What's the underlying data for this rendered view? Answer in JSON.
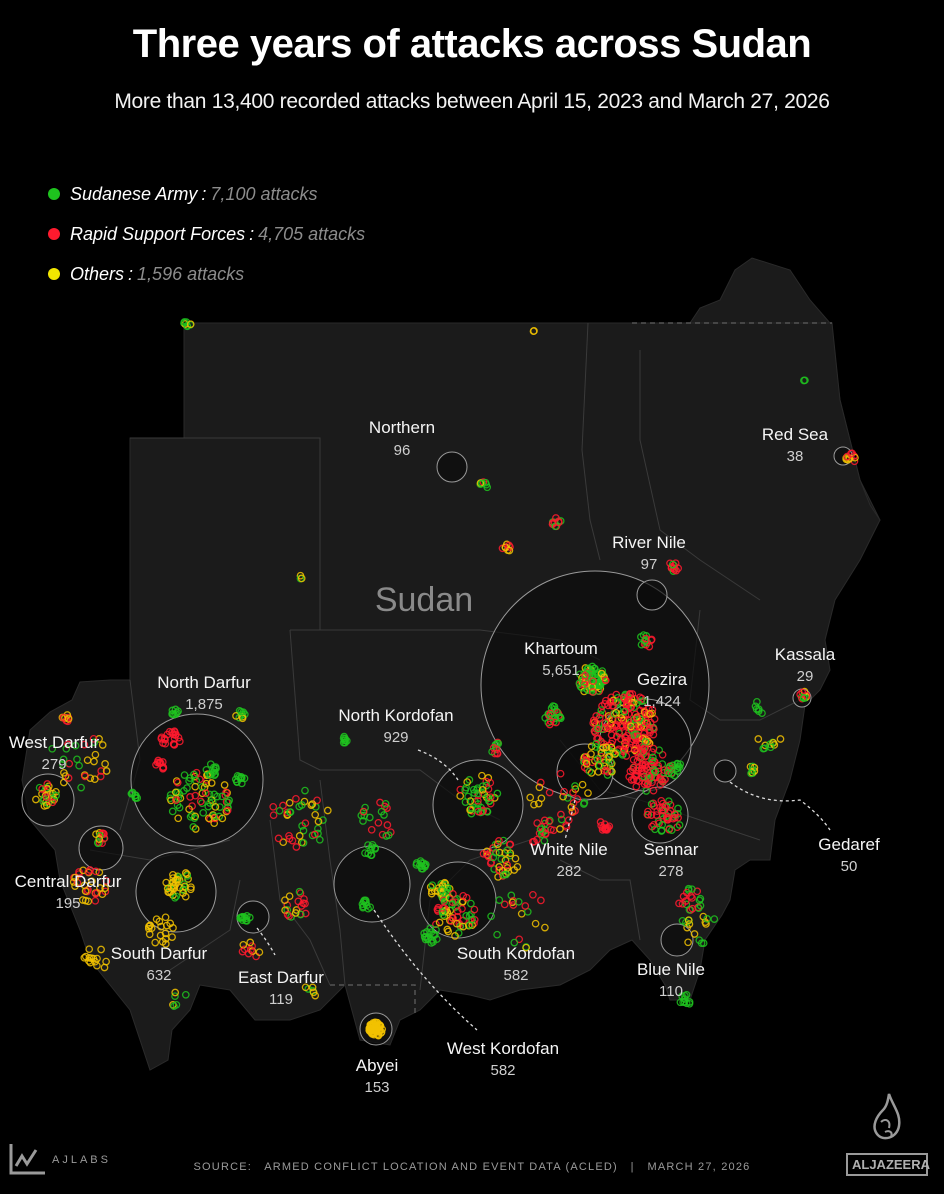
{
  "header": {
    "title": "Three years of attacks across Sudan",
    "subtitle": "More than 13,400 recorded attacks between April 15, 2023 and March 27, 2026"
  },
  "legend": [
    {
      "label": "Sudanese Army",
      "value": "7,100 attacks",
      "color": "#1ec31e"
    },
    {
      "label": "Rapid Support Forces",
      "value": "4,705 attacks",
      "color": "#ff1a2e"
    },
    {
      "label": "Others",
      "value": "1,596 attacks",
      "color": "#f2e600"
    }
  ],
  "map": {
    "country_label": "Sudan",
    "colors": {
      "land": "#1b1b1b",
      "border": "#3a3a3a",
      "army": "#1ec31e",
      "rsf": "#ff1a2e",
      "others": "#f2c200",
      "circle": "#9a9a9a"
    },
    "regions": [
      {
        "name": "Northern",
        "count": "96"
      },
      {
        "name": "Red Sea",
        "count": "38"
      },
      {
        "name": "River Nile",
        "count": "97"
      },
      {
        "name": "Khartoum",
        "count": "5,651"
      },
      {
        "name": "Gezira",
        "count": "1,424"
      },
      {
        "name": "Kassala",
        "count": "29"
      },
      {
        "name": "North Darfur",
        "count": "1,875"
      },
      {
        "name": "North Kordofan",
        "count": "929"
      },
      {
        "name": "West Darfur",
        "count": "279"
      },
      {
        "name": "Gedaref",
        "count": "50"
      },
      {
        "name": "White Nile",
        "count": "282"
      },
      {
        "name": "Sennar",
        "count": "278"
      },
      {
        "name": "Central Darfur",
        "count": "195"
      },
      {
        "name": "South Darfur",
        "count": "632"
      },
      {
        "name": "South Kordofan",
        "count": "582"
      },
      {
        "name": "East Darfur",
        "count": "119"
      },
      {
        "name": "Blue Nile",
        "count": "110"
      },
      {
        "name": "West Kordofan",
        "count": "582"
      },
      {
        "name": "Abyei",
        "count": "153"
      }
    ]
  },
  "footer": {
    "source": "SOURCE:   ARMED CONFLICT LOCATION AND EVENT DATA (ACLED)   |   MARCH 27, 2026",
    "ajlabs": "AJLABS",
    "aljazeera": "ALJAZEERA"
  }
}
